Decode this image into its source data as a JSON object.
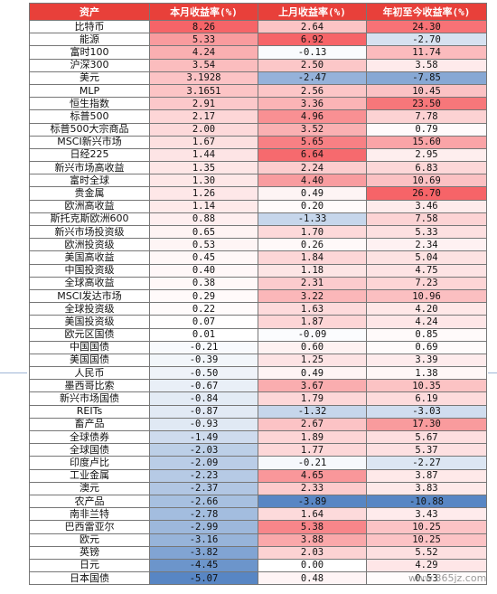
{
  "table": {
    "header": [
      "资产",
      "本月收益率(%)",
      "上月收益率(%)",
      "年初至今收益率(%)"
    ],
    "rows": [
      [
        "比特币",
        "8.26",
        "2.64",
        "24.30"
      ],
      [
        "能源",
        "5.33",
        "6.92",
        "-2.70"
      ],
      [
        "富时100",
        "4.24",
        "-0.13",
        "11.74"
      ],
      [
        "沪深300",
        "3.54",
        "2.50",
        "3.58"
      ],
      [
        "美元",
        "3.1928",
        "-2.47",
        "-7.85"
      ],
      [
        "MLP",
        "3.1651",
        "2.56",
        "10.45"
      ],
      [
        "恒生指数",
        "2.91",
        "3.36",
        "23.50"
      ],
      [
        "标普500",
        "2.17",
        "4.96",
        "7.78"
      ],
      [
        "标普500大宗商品",
        "2.00",
        "3.52",
        "0.79"
      ],
      [
        "MSCI新兴市场",
        "1.67",
        "5.65",
        "15.60"
      ],
      [
        "日经225",
        "1.44",
        "6.64",
        "2.95"
      ],
      [
        "新兴市场高收益",
        "1.35",
        "2.24",
        "6.83"
      ],
      [
        "富时全球",
        "1.30",
        "4.40",
        "10.69"
      ],
      [
        "贵金属",
        "1.26",
        "0.49",
        "26.70"
      ],
      [
        "欧洲高收益",
        "1.14",
        "0.20",
        "3.46"
      ],
      [
        "斯托克斯欧洲600",
        "0.88",
        "-1.33",
        "7.58"
      ],
      [
        "新兴市场投资级",
        "0.65",
        "1.70",
        "5.33"
      ],
      [
        "欧洲投资级",
        "0.53",
        "0.26",
        "2.34"
      ],
      [
        "美国高收益",
        "0.45",
        "1.84",
        "5.04"
      ],
      [
        "中国投资级",
        "0.40",
        "1.18",
        "4.75"
      ],
      [
        "全球高收益",
        "0.38",
        "2.31",
        "7.23"
      ],
      [
        "MSCI发达市场",
        "0.29",
        "3.22",
        "10.96"
      ],
      [
        "全球投资级",
        "0.22",
        "1.63",
        "4.20"
      ],
      [
        "美国投资级",
        "0.07",
        "1.87",
        "4.24"
      ],
      [
        "欧元区国债",
        "0.01",
        "-0.09",
        "0.85"
      ],
      [
        "中国国债",
        "-0.21",
        "0.60",
        "0.69"
      ],
      [
        "美国国债",
        "-0.39",
        "1.25",
        "3.39"
      ],
      [
        "人民币",
        "-0.50",
        "0.49",
        "1.38"
      ],
      [
        "墨西哥比索",
        "-0.67",
        "3.67",
        "10.35"
      ],
      [
        "新兴市场国债",
        "-0.84",
        "1.79",
        "6.19"
      ],
      [
        "REITs",
        "-0.87",
        "-1.32",
        "-3.03"
      ],
      [
        "畜产品",
        "-0.93",
        "2.67",
        "17.30"
      ],
      [
        "全球债券",
        "-1.49",
        "1.89",
        "5.67"
      ],
      [
        "全球国债",
        "-2.03",
        "1.77",
        "5.37"
      ],
      [
        "印度卢比",
        "-2.09",
        "-0.21",
        "-2.27"
      ],
      [
        "工业金属",
        "-2.23",
        "4.65",
        "3.87"
      ],
      [
        "澳元",
        "-2.37",
        "2.33",
        "3.83"
      ],
      [
        "农产品",
        "-2.66",
        "-3.89",
        "-10.88"
      ],
      [
        "南非兰特",
        "-2.78",
        "1.64",
        "3.43"
      ],
      [
        "巴西雷亚尔",
        "-2.99",
        "5.38",
        "10.25"
      ],
      [
        "欧元",
        "-3.16",
        "3.88",
        "10.25"
      ],
      [
        "英镑",
        "-3.82",
        "2.03",
        "5.52"
      ],
      [
        "日元",
        "-4.45",
        "0.00",
        "4.29"
      ],
      [
        "日本国债",
        "-5.07",
        "0.48",
        "0.53"
      ]
    ]
  },
  "watermark": "www.365jz.com"
}
